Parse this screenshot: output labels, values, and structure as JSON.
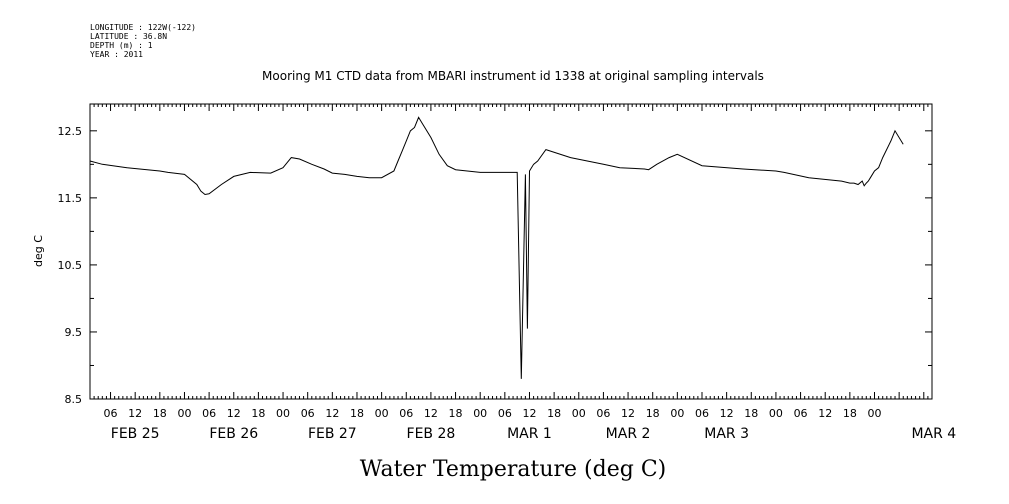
{
  "chart_data": {
    "type": "line",
    "title": "Mooring M1 CTD data from MBARI instrument id 1338 at original sampling intervals",
    "metadata_lines": [
      "LONGITUDE : 122W(-122)",
      "LATITUDE : 36.8N",
      "DEPTH (m) : 1",
      "YEAR : 2011"
    ],
    "xlabel": "Water Temperature (deg C)",
    "ylabel": "deg C",
    "ylim": [
      8.5,
      12.9
    ],
    "yticks": [
      8.5,
      9.5,
      10.5,
      11.5,
      12.5
    ],
    "x_unit": "hours from 2011-02-25 00:00",
    "xlim": [
      1,
      206
    ],
    "x_hour_ticks": [
      "06",
      "12",
      "18",
      "00",
      "06",
      "12",
      "18",
      "00",
      "06",
      "12",
      "18",
      "00",
      "06",
      "12",
      "18",
      "00",
      "06",
      "12",
      "18",
      "00",
      "06",
      "12",
      "18",
      "00",
      "06",
      "12",
      "18",
      "00",
      "06",
      "12",
      "18",
      "00"
    ],
    "x_day_labels": [
      "FEB 25",
      "FEB 26",
      "FEB 27",
      "FEB 28",
      "MAR  1",
      "MAR  2",
      "MAR  3",
      "MAR  4"
    ],
    "series": [
      {
        "x": [
          1,
          4,
          10,
          18,
          20,
          24,
          27,
          28,
          29,
          30,
          33,
          36,
          40,
          45,
          48,
          50,
          52,
          55,
          58,
          60,
          63,
          66,
          69,
          72,
          75,
          76,
          77,
          78,
          79,
          80,
          81,
          82,
          84,
          86,
          88,
          90,
          96,
          104,
          105,
          106,
          107,
          107.5,
          108,
          109,
          110,
          112,
          118,
          126,
          130,
          136,
          137,
          139,
          142,
          144,
          150,
          160,
          168,
          170,
          176,
          184,
          186,
          187,
          188,
          189,
          189.5,
          190,
          190.5,
          191,
          192,
          193,
          194,
          196,
          197,
          199
        ],
        "y": [
          12.05,
          12.0,
          11.95,
          11.9,
          11.88,
          11.85,
          11.7,
          11.6,
          11.55,
          11.56,
          11.7,
          11.82,
          11.88,
          11.87,
          11.95,
          12.1,
          12.08,
          12.0,
          11.93,
          11.87,
          11.85,
          11.82,
          11.8,
          11.8,
          11.9,
          12.05,
          12.2,
          12.35,
          12.5,
          12.55,
          12.7,
          12.6,
          12.4,
          12.15,
          11.98,
          11.92,
          11.88,
          11.88,
          11.88,
          8.8,
          11.85,
          9.55,
          11.9,
          12.0,
          12.05,
          12.22,
          12.1,
          12.0,
          11.95,
          11.93,
          11.92,
          12.0,
          12.1,
          12.15,
          11.98,
          11.93,
          11.9,
          11.88,
          11.8,
          11.75,
          11.72,
          11.72,
          11.7,
          11.75,
          11.68,
          11.72,
          11.75,
          11.8,
          11.9,
          11.95,
          12.1,
          12.35,
          12.5,
          12.3
        ]
      }
    ]
  }
}
